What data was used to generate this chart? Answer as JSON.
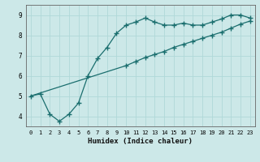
{
  "xlabel": "Humidex (Indice chaleur)",
  "xlim": [
    -0.5,
    23.5
  ],
  "ylim": [
    3.5,
    9.5
  ],
  "xticks": [
    0,
    1,
    2,
    3,
    4,
    5,
    6,
    7,
    8,
    9,
    10,
    11,
    12,
    13,
    14,
    15,
    16,
    17,
    18,
    19,
    20,
    21,
    22,
    23
  ],
  "yticks": [
    4,
    5,
    6,
    7,
    8,
    9
  ],
  "bg_color": "#cce8e8",
  "line_color": "#1a6e6e",
  "grid_color": "#b0d8d8",
  "line1_x": [
    0,
    1,
    2,
    3,
    4,
    5,
    6,
    7,
    8,
    9,
    10,
    11,
    12,
    13,
    14,
    15,
    16,
    17,
    18,
    19,
    20,
    21,
    22,
    23
  ],
  "line1_y": [
    5.0,
    5.1,
    4.1,
    3.75,
    4.1,
    4.65,
    6.0,
    6.85,
    7.4,
    8.1,
    8.5,
    8.65,
    8.85,
    8.65,
    8.5,
    8.5,
    8.6,
    8.5,
    8.5,
    8.65,
    8.8,
    9.0,
    9.0,
    8.85
  ],
  "line2_x": [
    0,
    1,
    2,
    3,
    4,
    5,
    6,
    7,
    8,
    9,
    10,
    11,
    12,
    13,
    14,
    15,
    16,
    17,
    18,
    19,
    20,
    21,
    22,
    23
  ],
  "line2_y": [
    5.0,
    5.15,
    5.3,
    5.45,
    5.6,
    5.75,
    5.9,
    6.05,
    6.2,
    6.35,
    6.5,
    6.7,
    6.9,
    7.05,
    7.2,
    7.4,
    7.55,
    7.7,
    7.85,
    8.0,
    8.15,
    8.35,
    8.55,
    8.7
  ],
  "line2_marker_start": 10
}
